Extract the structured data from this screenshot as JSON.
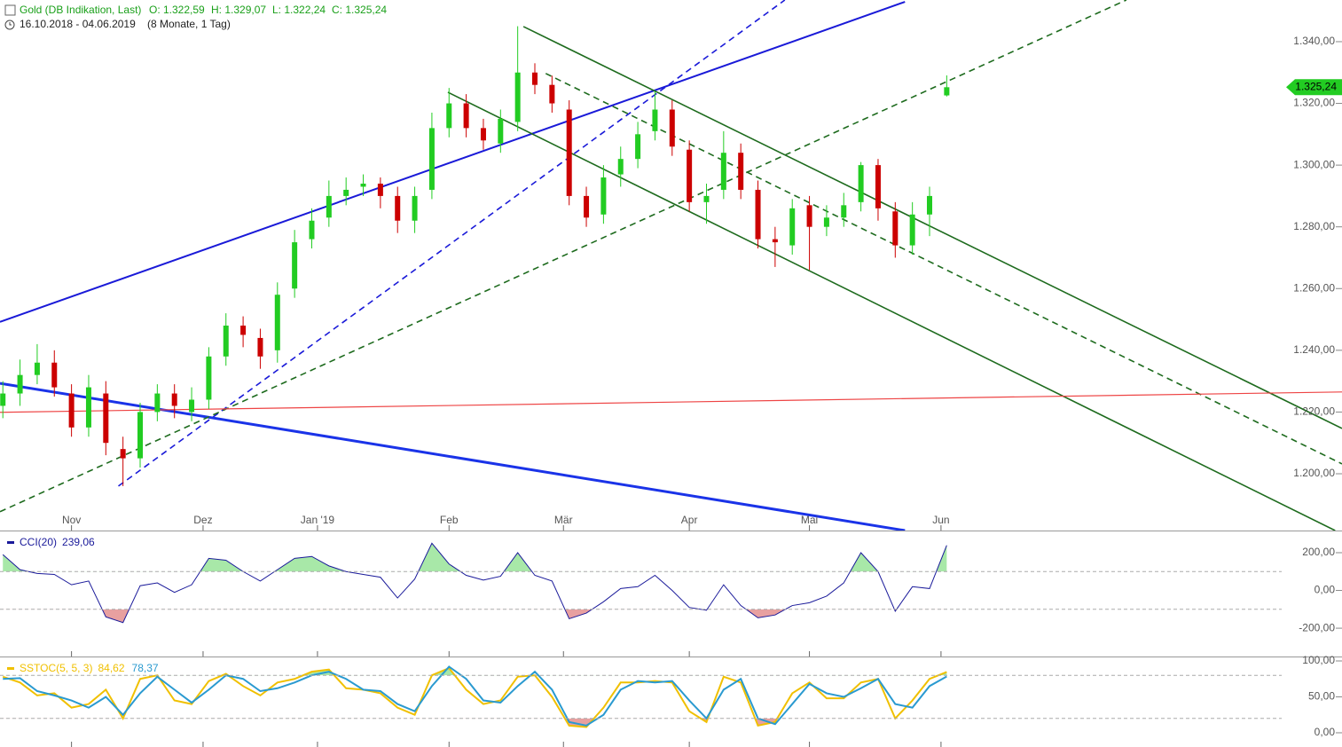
{
  "chart_data": [
    {
      "type": "candlestick",
      "title": "Gold (DB Indikation, Last)",
      "ohlc_texts": [
        "O: 1.322,59",
        "H: 1.329,07",
        "L: 1.322,24",
        "C: 1.325,24"
      ],
      "subtitle": "16.10.2018 - 04.06.2019",
      "period": "(8 Monate, 1 Tag)",
      "up_color": "#22cc22",
      "down_color": "#cc0000",
      "x": [
        0,
        3,
        6,
        9,
        12,
        15,
        18,
        21,
        24,
        27,
        30,
        33,
        36,
        39,
        42,
        45,
        48,
        51,
        54,
        57,
        60,
        63,
        66,
        69,
        72,
        75,
        78,
        81,
        84,
        87,
        90,
        93,
        96,
        99,
        102,
        105,
        108,
        111,
        114,
        117,
        120,
        123,
        126,
        129,
        132,
        135,
        138,
        141,
        144,
        147,
        150,
        153,
        156,
        159,
        162,
        165
      ],
      "open": [
        1222,
        1226,
        1232,
        1236,
        1226,
        1215,
        1226,
        1208,
        1205,
        1220,
        1226,
        1220,
        1224,
        1238,
        1248,
        1244,
        1240,
        1260,
        1276,
        1283,
        1290,
        1293,
        1294,
        1290,
        1282,
        1292,
        1312,
        1320,
        1312,
        1307,
        1314,
        1330,
        1326,
        1318,
        1290,
        1284,
        1297,
        1302,
        1311,
        1318,
        1305,
        1288,
        1292,
        1304,
        1292,
        1276,
        1274,
        1287,
        1280,
        1283,
        1288,
        1300,
        1285,
        1274,
        1284,
        1322.59
      ],
      "high": [
        1230,
        1237,
        1242,
        1240,
        1229,
        1232,
        1230,
        1212,
        1223,
        1229,
        1229,
        1228,
        1241,
        1252,
        1251,
        1247,
        1262,
        1279,
        1286,
        1295,
        1296,
        1297,
        1296,
        1293,
        1293,
        1317,
        1325,
        1323,
        1315,
        1318,
        1345,
        1333,
        1329,
        1321,
        1293,
        1300,
        1306,
        1314,
        1324,
        1321,
        1308,
        1294,
        1311,
        1307,
        1295,
        1280,
        1289,
        1290,
        1287,
        1291,
        1301,
        1302,
        1288,
        1288,
        1293,
        1329.07
      ],
      "low": [
        1218,
        1222,
        1229,
        1225,
        1212,
        1212,
        1206,
        1196,
        1202,
        1217,
        1218,
        1217,
        1221,
        1235,
        1241,
        1234,
        1236,
        1257,
        1273,
        1280,
        1287,
        1290,
        1286,
        1278,
        1278,
        1289,
        1309,
        1309,
        1305,
        1304,
        1311,
        1323,
        1317,
        1287,
        1280,
        1281,
        1293,
        1299,
        1308,
        1303,
        1285,
        1281,
        1289,
        1289,
        1273,
        1267,
        1271,
        1266,
        1277,
        1280,
        1285,
        1282,
        1270,
        1271,
        1277,
        1322.24
      ],
      "close": [
        1226,
        1232,
        1236,
        1228,
        1215,
        1228,
        1210,
        1205,
        1220,
        1226,
        1222,
        1224,
        1238,
        1248,
        1245,
        1238,
        1258,
        1275,
        1282,
        1290,
        1292,
        1294,
        1290,
        1282,
        1290,
        1312,
        1320,
        1312,
        1308,
        1315,
        1330,
        1326,
        1320,
        1290,
        1283,
        1296,
        1302,
        1310,
        1318,
        1306,
        1288,
        1290,
        1304,
        1292,
        1276,
        1275,
        1286,
        1280,
        1283,
        1287,
        1300,
        1286,
        1274,
        1284,
        1290,
        1325.24
      ],
      "last": {
        "value": 1325.24,
        "label": "1.325,24"
      },
      "last_color": "#22cc22",
      "xlim": [
        -0.5,
        234.1
      ],
      "ylim": [
        1181.6,
        1353.5
      ],
      "xticks": [
        {
          "value": 12,
          "label": "Nov"
        },
        {
          "value": 35,
          "label": "Dez"
        },
        {
          "value": 55,
          "label": "Jan '19"
        },
        {
          "value": 78,
          "label": "Feb"
        },
        {
          "value": 98,
          "label": "Mär"
        },
        {
          "value": 120,
          "label": "Apr"
        },
        {
          "value": 141,
          "label": "Mai"
        },
        {
          "value": 164,
          "label": "Jun"
        }
      ],
      "yticks": [
        {
          "value": 1200,
          "label": "1.200,00"
        },
        {
          "value": 1220,
          "label": "1.220,00"
        },
        {
          "value": 1240,
          "label": "1.240,00"
        },
        {
          "value": 1260,
          "label": "1.260,00"
        },
        {
          "value": 1280,
          "label": "1.280,00"
        },
        {
          "value": 1300,
          "label": "1.300,00"
        },
        {
          "value": 1320,
          "label": "1.320,00"
        },
        {
          "value": 1340,
          "label": "1.340,00"
        }
      ],
      "trendlines": [
        {
          "color": "#1a1ad8",
          "dashed": false,
          "width": 2,
          "x": [
            -0.5,
            157.7
          ],
          "y": [
            1249.2,
            1352.9
          ]
        },
        {
          "color": "#1a1ad8",
          "dashed": true,
          "width": 1.6,
          "x": [
            20.2,
            136.7
          ],
          "y": [
            1196,
            1353.5
          ]
        },
        {
          "color": "#1a33e8",
          "dashed": false,
          "width": 3,
          "x": [
            -0.5,
            157.7
          ],
          "y": [
            1229.3,
            1181.6
          ]
        },
        {
          "color": "#1e6b1e",
          "dashed": true,
          "width": 1.6,
          "x": [
            -0.5,
            196.4
          ],
          "y": [
            1187.7,
            1353.5
          ]
        },
        {
          "color": "#1e6b1e",
          "dashed": false,
          "width": 1.6,
          "x": [
            91,
            234.1
          ],
          "y": [
            1344.9,
            1214.7
          ]
        },
        {
          "color": "#1e6b1e",
          "dashed": false,
          "width": 1.6,
          "x": [
            77.8,
            232.9
          ],
          "y": [
            1323.6,
            1181.6
          ]
        },
        {
          "color": "#1e6b1e",
          "dashed": true,
          "width": 1.6,
          "x": [
            94.9,
            234.1
          ],
          "y": [
            1329.7,
            1203.2
          ]
        },
        {
          "color": "#ee4444",
          "dashed": false,
          "width": 1.2,
          "x": [
            -0.5,
            234.1
          ],
          "y": [
            1219.9,
            1226.5
          ]
        }
      ]
    },
    {
      "type": "line",
      "xlim": [
        -0.5,
        234.1
      ],
      "ylim": [
        -350,
        308
      ],
      "yticks": [
        {
          "value": -200,
          "label": "-200,00"
        },
        {
          "value": 0,
          "label": "0,00"
        },
        {
          "value": 200,
          "label": "200,00"
        }
      ],
      "bands": [
        100,
        -100
      ],
      "band_colors": [
        "#a8e8a8",
        "#e8a0a0"
      ],
      "x": [
        0,
        3,
        6,
        9,
        12,
        15,
        18,
        21,
        24,
        27,
        30,
        33,
        36,
        39,
        42,
        45,
        48,
        51,
        54,
        57,
        60,
        63,
        66,
        69,
        72,
        75,
        78,
        81,
        84,
        87,
        90,
        93,
        96,
        99,
        102,
        105,
        108,
        111,
        114,
        117,
        120,
        123,
        126,
        129,
        132,
        135,
        138,
        141,
        144,
        147,
        150,
        153,
        156,
        159,
        162,
        165
      ],
      "series": [
        {
          "name": "CCI(20)",
          "reading": "239,06",
          "color": "#1a1a9a",
          "values": [
            190,
            110,
            90,
            85,
            30,
            50,
            -140,
            -170,
            25,
            40,
            -10,
            30,
            170,
            160,
            100,
            50,
            110,
            170,
            180,
            130,
            100,
            85,
            70,
            -40,
            60,
            250,
            140,
            80,
            55,
            75,
            200,
            80,
            50,
            -150,
            -120,
            -60,
            10,
            20,
            80,
            0,
            -90,
            -105,
            30,
            -80,
            -145,
            -130,
            -80,
            -65,
            -30,
            40,
            200,
            100,
            -110,
            20,
            10,
            239.06
          ]
        }
      ]
    },
    {
      "type": "line",
      "xlim": [
        -0.5,
        234.1
      ],
      "ylim": [
        -19.8,
        103.7
      ],
      "yticks": [
        {
          "value": 0,
          "label": "0,00"
        },
        {
          "value": 50,
          "label": "50,00"
        },
        {
          "value": 100,
          "label": "100,00"
        }
      ],
      "bands": [
        80,
        20
      ],
      "band_colors": [
        "#a8e8a8",
        "#e8a0a0"
      ],
      "x": [
        0,
        3,
        6,
        9,
        12,
        15,
        18,
        21,
        24,
        27,
        30,
        33,
        36,
        39,
        42,
        45,
        48,
        51,
        54,
        57,
        60,
        63,
        66,
        69,
        72,
        75,
        78,
        81,
        84,
        87,
        90,
        93,
        96,
        99,
        102,
        105,
        108,
        111,
        114,
        117,
        120,
        123,
        126,
        129,
        132,
        135,
        138,
        141,
        144,
        147,
        150,
        153,
        156,
        159,
        162,
        165
      ],
      "series": [
        {
          "name": "SSTOC(5, 5, 3)",
          "reading": "84,62",
          "color": "#f0c000",
          "values": [
            78,
            70,
            52,
            55,
            35,
            40,
            60,
            20,
            75,
            80,
            45,
            40,
            72,
            82,
            65,
            52,
            70,
            75,
            85,
            88,
            62,
            60,
            55,
            35,
            25,
            80,
            90,
            60,
            40,
            45,
            78,
            80,
            50,
            10,
            8,
            35,
            70,
            70,
            72,
            70,
            30,
            15,
            78,
            70,
            10,
            15,
            55,
            70,
            48,
            48,
            70,
            75,
            20,
            45,
            75,
            84.62
          ]
        },
        {
          "reading": "78,37",
          "color": "#2a9ad0",
          "values": [
            75,
            76,
            58,
            52,
            45,
            35,
            50,
            25,
            55,
            78,
            60,
            42,
            60,
            80,
            75,
            58,
            62,
            70,
            80,
            85,
            75,
            60,
            58,
            40,
            30,
            65,
            92,
            75,
            45,
            42,
            65,
            85,
            60,
            15,
            10,
            25,
            60,
            72,
            70,
            72,
            45,
            20,
            60,
            75,
            20,
            12,
            40,
            68,
            55,
            50,
            62,
            75,
            40,
            35,
            65,
            78.37
          ]
        }
      ]
    }
  ]
}
